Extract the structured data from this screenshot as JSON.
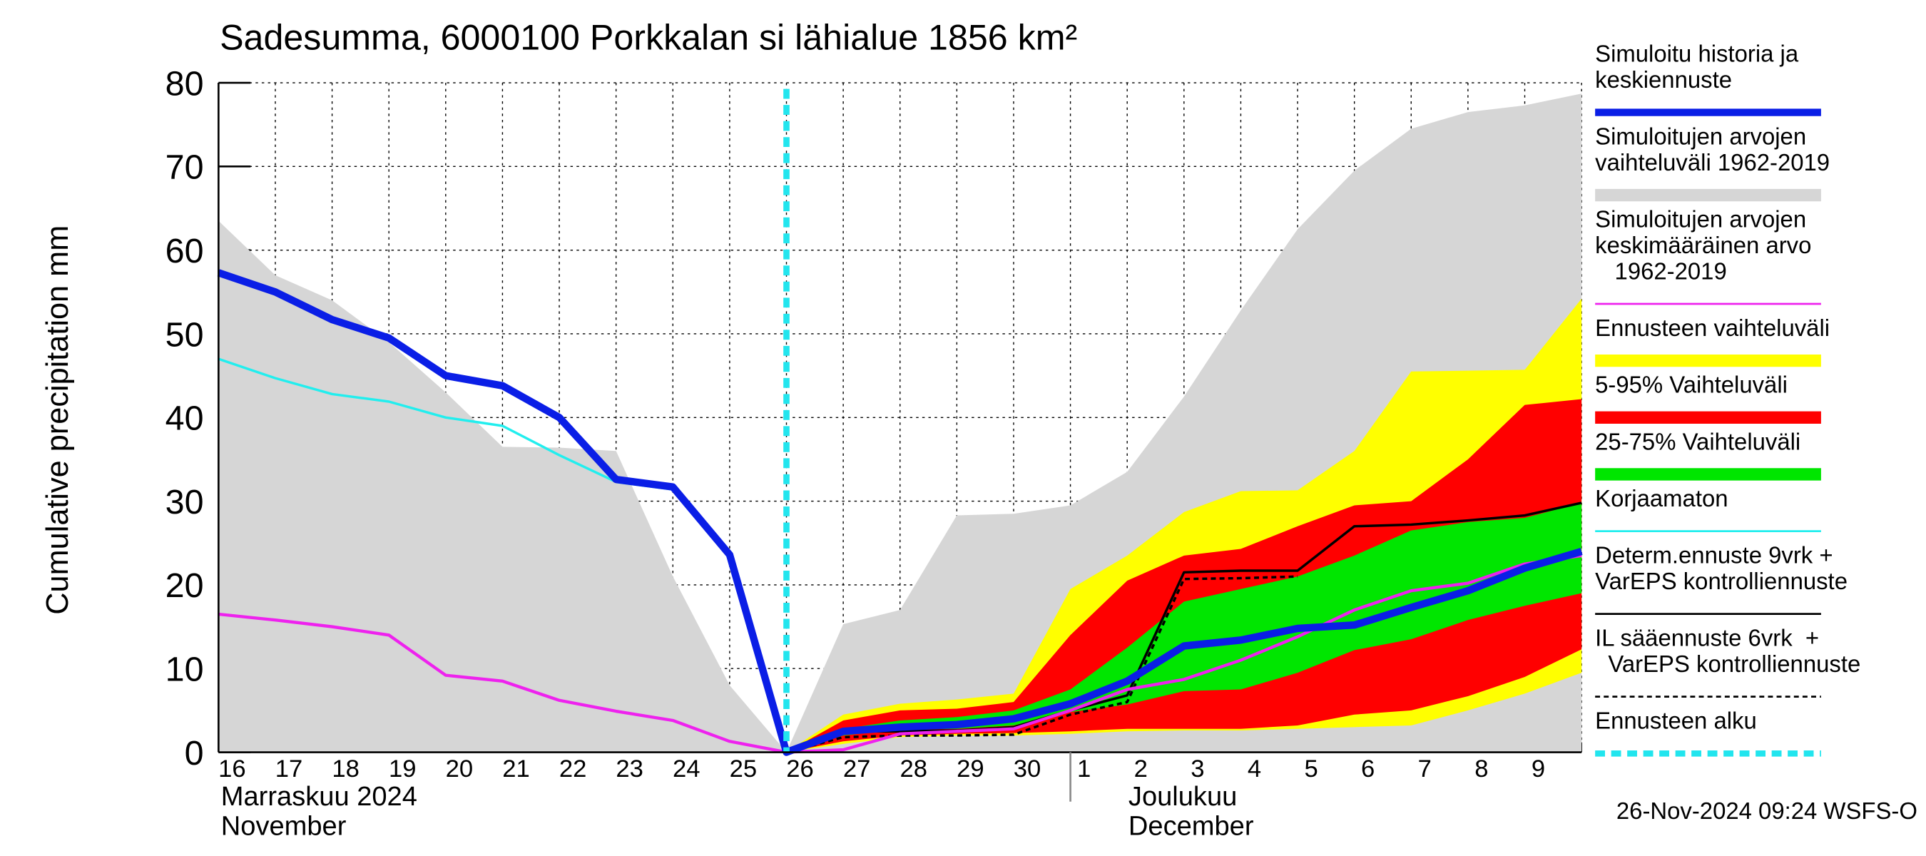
{
  "chart_data": {
    "type": "line",
    "title": "Sadesumma, 6000100 Porkkalan si lähialue 1856 km²",
    "y_label": "Cumulative precipitation    mm",
    "categories": [
      "16",
      "17",
      "18",
      "19",
      "20",
      "21",
      "22",
      "23",
      "24",
      "25",
      "26",
      "27",
      "28",
      "29",
      "30",
      "1",
      "2",
      "3",
      "4",
      "5",
      "6",
      "7",
      "8",
      "9",
      null
    ],
    "month_labels": [
      {
        "text": "Marraskuu 2024\nNovember",
        "category": "16"
      },
      {
        "text": "Joulukuu\nDecember",
        "category": "1"
      }
    ],
    "footer": "26-Nov-2024 09:24 WSFS-O",
    "ylim": [
      0,
      80
    ],
    "yticks": [
      0,
      10,
      20,
      30,
      40,
      50,
      60,
      70,
      80
    ],
    "grid": true,
    "legend": "right",
    "forecast_start": {
      "name": "Ennusteen alku",
      "category": "26",
      "color": "#22e5ee"
    },
    "series": [
      {
        "name": "Simuloitu historia ja\nkeskiennuste",
        "kind": "line",
        "color": "#0a1ee6",
        "line_width": 6,
        "values": [
          57.3,
          55,
          51.7,
          49.5,
          45,
          43.8,
          40,
          32.6,
          31.7,
          23.6,
          0,
          2.5,
          3,
          3.3,
          4,
          5.8,
          8.5,
          12.7,
          13.4,
          14.8,
          15.2,
          17.3,
          19.3,
          22,
          24
        ]
      },
      {
        "name": "Simuloitujen arvojen\nvaihteluväli 1962-2019",
        "kind": "band",
        "color": "#d6d6d6",
        "upper": [
          63.5,
          57,
          54,
          49,
          43,
          36.5,
          36.4,
          36,
          21,
          8,
          0,
          15.3,
          17,
          28.3,
          28.5,
          29.5,
          33.5,
          42.5,
          52.8,
          62.5,
          69.5,
          74.5,
          76.5,
          77.3,
          78.7
        ],
        "lower": [
          0,
          0,
          0,
          0,
          0,
          0,
          0,
          0,
          0,
          0,
          0,
          0,
          0,
          0,
          0,
          0,
          0,
          0,
          0,
          0,
          0,
          0,
          0,
          0,
          0
        ]
      },
      {
        "name": "Simuloitujen arvojen\nkeskimääräinen arvo\n   1962-2019",
        "kind": "line",
        "color": "#ee22ee",
        "line_width": 2.5,
        "values": [
          16.5,
          15.8,
          15,
          14,
          9.2,
          8.5,
          6.2,
          4.9,
          3.8,
          1.3,
          0,
          0.3,
          2.2,
          2.5,
          2.8,
          5,
          7.5,
          8.7,
          11,
          13.8,
          17,
          19.3,
          20.2,
          22.5,
          23.5
        ]
      },
      {
        "name": "Ennusteen vaihteluväli",
        "kind": "band",
        "color": "#ffff00",
        "upper": [
          null,
          null,
          null,
          null,
          null,
          null,
          null,
          null,
          null,
          null,
          0,
          4.5,
          5.8,
          6.3,
          7,
          19.5,
          23.5,
          28.7,
          31.2,
          31.3,
          36,
          45.5,
          45.6,
          45.7,
          54.2
        ],
        "lower": [
          null,
          null,
          null,
          null,
          null,
          null,
          null,
          null,
          null,
          null,
          0,
          1,
          1.8,
          2,
          2,
          2.2,
          2.5,
          2.6,
          2.6,
          2.8,
          3,
          3.2,
          5,
          7,
          9.5
        ]
      },
      {
        "name": "5-95% Vaihteluväli",
        "kind": "band",
        "color": "#ff0000",
        "upper": [
          null,
          null,
          null,
          null,
          null,
          null,
          null,
          null,
          null,
          null,
          0,
          3.8,
          5,
          5.2,
          6,
          14,
          20.5,
          23.5,
          24.3,
          27,
          29.5,
          30,
          35,
          41.5,
          42.2
        ],
        "lower": [
          null,
          null,
          null,
          null,
          null,
          null,
          null,
          null,
          null,
          null,
          0,
          1.3,
          2,
          2.2,
          2.3,
          2.5,
          2.8,
          2.8,
          2.8,
          3.2,
          4.5,
          5,
          6.7,
          9,
          12.3
        ]
      },
      {
        "name": "25-75% Vaihteluväli",
        "kind": "band",
        "color": "#00e600",
        "upper": [
          null,
          null,
          null,
          null,
          null,
          null,
          null,
          null,
          null,
          null,
          0,
          2.8,
          3.8,
          4.2,
          5,
          7.5,
          12.5,
          18,
          19.5,
          21,
          23.5,
          26.5,
          27.5,
          28,
          29.8
        ],
        "lower": [
          null,
          null,
          null,
          null,
          null,
          null,
          null,
          null,
          null,
          null,
          0,
          2,
          2.7,
          2.8,
          3.2,
          4.8,
          5.7,
          7.3,
          7.5,
          9.5,
          12.2,
          13.5,
          15.8,
          17.5,
          19
        ]
      },
      {
        "name": "Korjaamaton",
        "kind": "line",
        "color": "#22eeee",
        "line_width": 2,
        "values": [
          47,
          44.7,
          42.8,
          41.9,
          40,
          39,
          35.5,
          32.3,
          31.4,
          23.6,
          0,
          null,
          null,
          null,
          null,
          null,
          null,
          null,
          null,
          null,
          null,
          null,
          null,
          null,
          null
        ]
      },
      {
        "name": "Determ.ennuste 9vrk +\nVarEPS kontrolliennuste",
        "kind": "line",
        "color": "#000000",
        "line_width": 2,
        "values": [
          null,
          null,
          null,
          null,
          null,
          null,
          null,
          null,
          null,
          null,
          0,
          2.5,
          2.5,
          2.6,
          3,
          5,
          6.8,
          21.5,
          21.7,
          21.7,
          27,
          27.2,
          27.7,
          28.3,
          29.8
        ]
      },
      {
        "name": "IL sääennuste 6vrk  +\n  VarEPS kontrolliennuste",
        "kind": "line",
        "color": "#000000",
        "line_width": 2,
        "dashed": true,
        "values": [
          null,
          null,
          null,
          null,
          null,
          null,
          null,
          null,
          null,
          null,
          0,
          1.8,
          2,
          2,
          2.1,
          4.5,
          6,
          20.7,
          20.8,
          21,
          null,
          null,
          null,
          null,
          null
        ]
      }
    ]
  }
}
